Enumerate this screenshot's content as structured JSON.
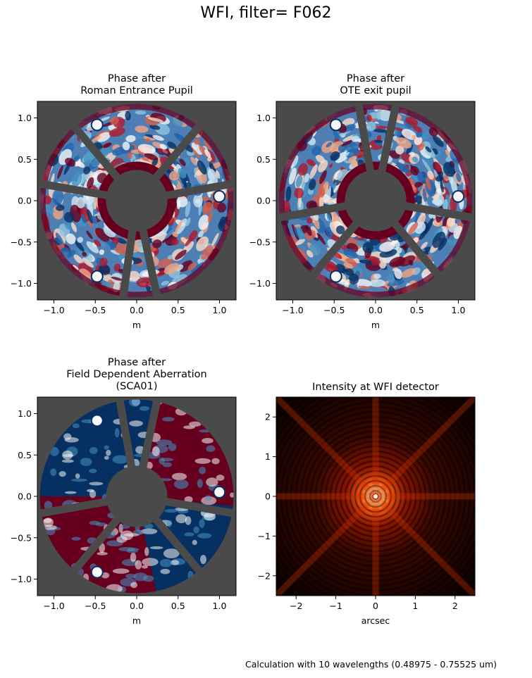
{
  "figure": {
    "suptitle": "WFI, filter= F062",
    "footnote": "Calculation with 10 wavelengths (0.48975 - 0.75525 um)"
  },
  "panels": [
    {
      "id": "entrance",
      "title": [
        "Phase after",
        "Roman Entrance Pupil"
      ],
      "xlabel": "m",
      "xticks": [
        -1.0,
        -0.5,
        0.0,
        0.5,
        1.0
      ],
      "yticks": [
        1.0,
        0.5,
        0.0,
        -0.5,
        -1.0
      ],
      "xtick_labels": [
        "−1.0",
        "−0.5",
        "0.0",
        "0.5",
        "1.0"
      ],
      "ytick_labels": [
        "1.0",
        "0.5",
        "0.0",
        "−0.5",
        "−1.0"
      ],
      "range": [
        -1.2,
        1.2
      ],
      "strut_angles_deg": [
        50,
        130,
        170,
        10,
        262,
        282
      ],
      "style": "turbulent"
    },
    {
      "id": "ote",
      "title": [
        "Phase after",
        "OTE exit pupil"
      ],
      "xlabel": "m",
      "xticks": [
        -1.0,
        -0.5,
        0.0,
        0.5,
        1.0
      ],
      "yticks": [
        1.0,
        0.5,
        0.0,
        -0.5,
        -1.0
      ],
      "xtick_labels": [
        "−1.0",
        "−0.5",
        "0.0",
        "0.5",
        "1.0"
      ],
      "ytick_labels": [
        "1.0",
        "0.5",
        "0.0",
        "−0.5",
        "−1.0"
      ],
      "range": [
        -1.2,
        1.2
      ],
      "strut_angles_deg": [
        100,
        78,
        190,
        350,
        230,
        310
      ],
      "style": "turbulent"
    },
    {
      "id": "fda",
      "title": [
        "Phase after",
        "Field Dependent Aberration",
        "(SCA01)"
      ],
      "xlabel": "m",
      "xticks": [
        -1.0,
        -0.5,
        0.0,
        0.5,
        1.0
      ],
      "yticks": [
        1.0,
        0.5,
        0.0,
        -0.5,
        -1.0
      ],
      "xtick_labels": [
        "−1.0",
        "−0.5",
        "0.0",
        "0.5",
        "1.0"
      ],
      "ytick_labels": [
        "1.0",
        "0.5",
        "0.0",
        "−0.5",
        "−1.0"
      ],
      "range": [
        -1.2,
        1.2
      ],
      "strut_angles_deg": [
        100,
        78,
        190,
        350,
        230,
        310
      ],
      "style": "smooth"
    },
    {
      "id": "psf",
      "title": [
        "Intensity at WFI detector"
      ],
      "xlabel": "arcsec",
      "xticks": [
        -2,
        -1,
        0,
        1,
        2
      ],
      "yticks": [
        2,
        1,
        0,
        -1,
        -2
      ],
      "xtick_labels": [
        "−2",
        "−1",
        "0",
        "1",
        "2"
      ],
      "ytick_labels": [
        "2",
        "1",
        "0",
        "−1",
        "−2"
      ],
      "range": [
        -2.5,
        2.5
      ],
      "spike_angles_deg": [
        0,
        45,
        90,
        135,
        180,
        225,
        270,
        315
      ],
      "style": "psf"
    }
  ],
  "colors": {
    "background": "#4a4a4a",
    "phase_neg": "#053061",
    "phase_mid": "#f7f7f7",
    "phase_pos": "#67001f",
    "psf_core": "#ffffff",
    "psf_mid": "#cc3300",
    "psf_bg": "#000000"
  }
}
